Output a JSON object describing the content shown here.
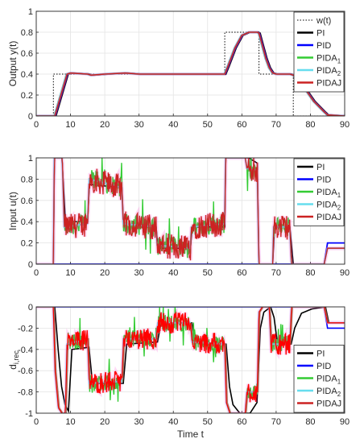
{
  "chart_data": [
    {
      "type": "line",
      "ylabel": "Output y(t)",
      "xlabel": "",
      "xlim": [
        0,
        90
      ],
      "ylim": [
        0,
        1
      ],
      "xticks": [
        "0",
        "10",
        "20",
        "30",
        "40",
        "50",
        "60",
        "70",
        "80",
        "90"
      ],
      "yticks": [
        "0",
        "0.2",
        "0.4",
        "0.6",
        "0.8",
        "1"
      ],
      "grid": true,
      "legend_position": "top-right",
      "legend": [
        {
          "label": "w(t)",
          "sub": "",
          "color": "#000000",
          "style": "dotted"
        },
        {
          "label": "PI",
          "sub": "",
          "color": "#000000",
          "style": "solid"
        },
        {
          "label": "PID",
          "sub": "",
          "color": "#0000ff",
          "style": "solid"
        },
        {
          "label": "PIDA",
          "sub": "1",
          "color": "#33cc33",
          "style": "solid"
        },
        {
          "label": "PIDA",
          "sub": "2",
          "color": "#66ddee",
          "style": "solid"
        },
        {
          "label": "PIDAJ",
          "sub": "",
          "color": "#cc2222",
          "style": "solid"
        }
      ],
      "series": [
        {
          "name": "w(t)",
          "color": "#000000",
          "style": "dotted",
          "points": [
            [
              0,
              0
            ],
            [
              5,
              0
            ],
            [
              5,
              0.4
            ],
            [
              55,
              0.4
            ],
            [
              55,
              0.8
            ],
            [
              65,
              0.8
            ],
            [
              65,
              0.4
            ],
            [
              75,
              0.4
            ],
            [
              75,
              0
            ],
            [
              90,
              0
            ]
          ]
        },
        {
          "name": "PIDAJ",
          "color": "#cc2222",
          "style": "solid",
          "points": [
            [
              0,
              0
            ],
            [
              5.4,
              0
            ],
            [
              9,
              0.4
            ],
            [
              10,
              0.41
            ],
            [
              15,
              0.4
            ],
            [
              16,
              0.39
            ],
            [
              20,
              0.4
            ],
            [
              26,
              0.41
            ],
            [
              30,
              0.4
            ],
            [
              40,
              0.4
            ],
            [
              46,
              0.4
            ],
            [
              55,
              0.4
            ],
            [
              56,
              0.48
            ],
            [
              58,
              0.65
            ],
            [
              60,
              0.77
            ],
            [
              62,
              0.8
            ],
            [
              64.5,
              0.8
            ],
            [
              65,
              0.79
            ],
            [
              66,
              0.67
            ],
            [
              67,
              0.55
            ],
            [
              68,
              0.46
            ],
            [
              69,
              0.41
            ],
            [
              70,
              0.4
            ],
            [
              74,
              0.4
            ],
            [
              75,
              0.39
            ],
            [
              78,
              0.28
            ],
            [
              81,
              0.14
            ],
            [
              84,
              0.04
            ],
            [
              85,
              0.01
            ],
            [
              90,
              0
            ]
          ]
        }
      ]
    },
    {
      "type": "line",
      "ylabel": "Input u(t)",
      "xlabel": "",
      "xlim": [
        0,
        90
      ],
      "ylim": [
        0,
        1
      ],
      "xticks": [
        "0",
        "10",
        "20",
        "30",
        "40",
        "50",
        "60",
        "70",
        "80",
        "90"
      ],
      "yticks": [
        "0",
        "0.2",
        "0.4",
        "0.6",
        "0.8",
        "1"
      ],
      "grid": true,
      "legend_position": "top-right",
      "legend": [
        {
          "label": "PI",
          "sub": "",
          "color": "#000000",
          "style": "solid"
        },
        {
          "label": "PID",
          "sub": "",
          "color": "#0000ff",
          "style": "solid"
        },
        {
          "label": "PIDA",
          "sub": "1",
          "color": "#33cc33",
          "style": "solid"
        },
        {
          "label": "PIDA",
          "sub": "2",
          "color": "#66ddee",
          "style": "solid"
        },
        {
          "label": "PIDAJ",
          "sub": "",
          "color": "#cc2222",
          "style": "solid"
        }
      ],
      "series": [
        {
          "name": "PI",
          "color": "#000000",
          "style": "solid",
          "points": [
            [
              0,
              0
            ],
            [
              5,
              0
            ],
            [
              5.3,
              1
            ],
            [
              7.5,
              1
            ],
            [
              8.5,
              0.4
            ],
            [
              15,
              0.4
            ],
            [
              15.5,
              0.75
            ],
            [
              25,
              0.72
            ],
            [
              25.5,
              0.35
            ],
            [
              35,
              0.35
            ],
            [
              35.5,
              0.15
            ],
            [
              45,
              0.15
            ],
            [
              45.5,
              0.35
            ],
            [
              55,
              0.35
            ],
            [
              55.3,
              1
            ],
            [
              62,
              1
            ],
            [
              64.5,
              0.95
            ],
            [
              65,
              0
            ],
            [
              69,
              0
            ],
            [
              69.5,
              0.35
            ],
            [
              74,
              0.35
            ],
            [
              75,
              0
            ],
            [
              84,
              0
            ],
            [
              85,
              0.15
            ],
            [
              90,
              0.15
            ]
          ]
        },
        {
          "name": "PID",
          "color": "#0000ff",
          "style": "solid",
          "points": [
            [
              0,
              0
            ],
            [
              84,
              0
            ],
            [
              85,
              0.2
            ],
            [
              90,
              0.2
            ]
          ]
        },
        {
          "name": "PIDAJ",
          "color": "#cc2222",
          "style": "solid",
          "points": [
            [
              0,
              0
            ],
            [
              5,
              0
            ],
            [
              5.3,
              1
            ],
            [
              7.6,
              1
            ],
            [
              8.2,
              0.35
            ],
            [
              15,
              0.38
            ],
            [
              15.5,
              0.8
            ],
            [
              25,
              0.72
            ],
            [
              25.4,
              0.38
            ],
            [
              35,
              0.35
            ],
            [
              35.3,
              0.18
            ],
            [
              45,
              0.15
            ],
            [
              45.3,
              0.35
            ],
            [
              55,
              0.38
            ],
            [
              55.3,
              1
            ],
            [
              61,
              1
            ],
            [
              61.5,
              0.9
            ],
            [
              64.5,
              0.88
            ],
            [
              65,
              0
            ],
            [
              69,
              0
            ],
            [
              69.3,
              0.35
            ],
            [
              74,
              0.35
            ],
            [
              74.5,
              0
            ],
            [
              84,
              0
            ],
            [
              85,
              0.15
            ],
            [
              90,
              0.15
            ]
          ]
        }
      ]
    },
    {
      "type": "line",
      "ylabel": "d",
      "ylabel_sub": "i,rec",
      "xlabel": "Time t",
      "xlim": [
        0,
        90
      ],
      "ylim": [
        -1,
        0
      ],
      "xticks": [
        "0",
        "10",
        "20",
        "30",
        "40",
        "50",
        "60",
        "70",
        "80",
        "90"
      ],
      "yticks": [
        "-1",
        "-0.8",
        "-0.6",
        "-0.4",
        "-0.2",
        "0"
      ],
      "grid": true,
      "legend_position": "bottom-right",
      "legend": [
        {
          "label": "PI",
          "sub": "",
          "color": "#000000",
          "style": "solid"
        },
        {
          "label": "PID",
          "sub": "",
          "color": "#0000ff",
          "style": "solid"
        },
        {
          "label": "PIDA",
          "sub": "1",
          "color": "#33cc33",
          "style": "solid"
        },
        {
          "label": "PIDA",
          "sub": "2",
          "color": "#66ddee",
          "style": "solid"
        },
        {
          "label": "PIDAJ",
          "sub": "",
          "color": "#cc2222",
          "style": "solid"
        }
      ],
      "series": [
        {
          "name": "PI",
          "color": "#000000",
          "style": "solid",
          "points": [
            [
              0,
              0
            ],
            [
              5,
              0
            ],
            [
              6,
              -0.4
            ],
            [
              7,
              -0.75
            ],
            [
              8,
              -0.92
            ],
            [
              9,
              -0.98
            ],
            [
              10,
              -0.4
            ],
            [
              15,
              -0.38
            ],
            [
              16,
              -0.72
            ],
            [
              25,
              -0.72
            ],
            [
              26,
              -0.35
            ],
            [
              35,
              -0.33
            ],
            [
              36,
              -0.15
            ],
            [
              45,
              -0.15
            ],
            [
              46,
              -0.33
            ],
            [
              55,
              -0.35
            ],
            [
              56,
              -0.75
            ],
            [
              57,
              -0.92
            ],
            [
              59,
              -1
            ],
            [
              62,
              -1
            ],
            [
              64,
              -0.9
            ],
            [
              65,
              -0.2
            ],
            [
              66,
              -0.05
            ],
            [
              68,
              0
            ],
            [
              69,
              -0.1
            ],
            [
              70,
              -0.35
            ],
            [
              74,
              -0.35
            ],
            [
              75,
              -0.2
            ],
            [
              77,
              -0.06
            ],
            [
              80,
              -0.02
            ],
            [
              84,
              0
            ],
            [
              85,
              -0.15
            ],
            [
              90,
              -0.15
            ]
          ]
        },
        {
          "name": "PID",
          "color": "#0000ff",
          "style": "solid",
          "points": [
            [
              0,
              0
            ],
            [
              84,
              0
            ],
            [
              85,
              -0.2
            ],
            [
              90,
              -0.2
            ]
          ]
        },
        {
          "name": "PIDAJ",
          "color": "#cc2222",
          "style": "solid",
          "points": [
            [
              0,
              0
            ],
            [
              5,
              0
            ],
            [
              5.5,
              -0.6
            ],
            [
              6.5,
              -0.95
            ],
            [
              7.5,
              -1
            ],
            [
              8.5,
              -1
            ],
            [
              9,
              -0.35
            ],
            [
              15,
              -0.3
            ],
            [
              15.5,
              -0.72
            ],
            [
              25,
              -0.7
            ],
            [
              25.5,
              -0.3
            ],
            [
              35,
              -0.3
            ],
            [
              35.5,
              -0.15
            ],
            [
              45,
              -0.15
            ],
            [
              45.5,
              -0.33
            ],
            [
              55,
              -0.35
            ],
            [
              55.5,
              -0.9
            ],
            [
              56.5,
              -1
            ],
            [
              61,
              -1
            ],
            [
              61.5,
              -0.8
            ],
            [
              64.5,
              -0.8
            ],
            [
              65,
              -0.05
            ],
            [
              66,
              0
            ],
            [
              68,
              0
            ],
            [
              68.5,
              -0.35
            ],
            [
              74,
              -0.35
            ],
            [
              74.5,
              0
            ],
            [
              84,
              0
            ],
            [
              85,
              -0.15
            ],
            [
              90,
              -0.15
            ]
          ]
        }
      ]
    }
  ]
}
